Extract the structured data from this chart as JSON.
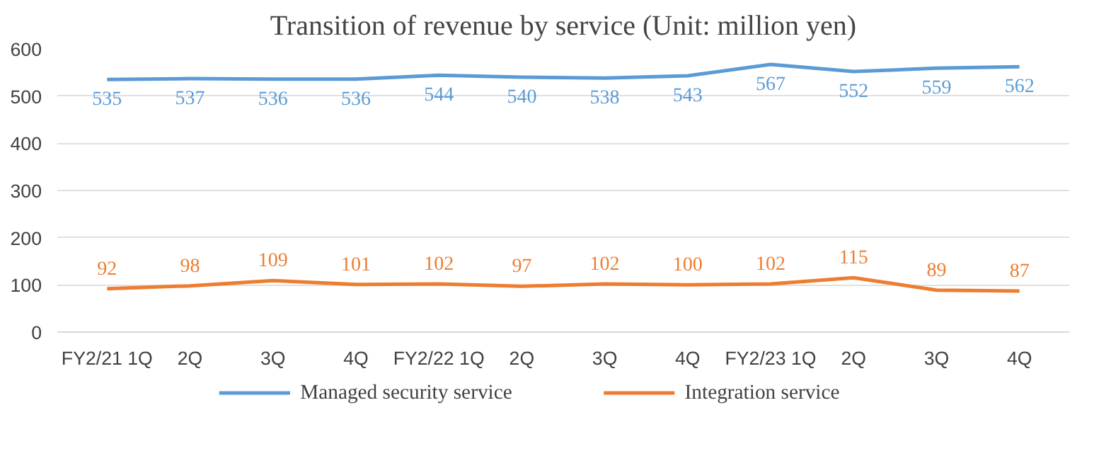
{
  "chart_data": {
    "type": "line",
    "title": "Transition of revenue by service (Unit: million yen)",
    "categories": [
      "FY2/21 1Q",
      "2Q",
      "3Q",
      "4Q",
      "FY2/22 1Q",
      "2Q",
      "3Q",
      "4Q",
      "FY2/23 1Q",
      "2Q",
      "3Q",
      "4Q"
    ],
    "series": [
      {
        "name": "Managed security service",
        "color": "#5b9bd5",
        "values": [
          535,
          537,
          536,
          536,
          544,
          540,
          538,
          543,
          567,
          552,
          559,
          562
        ]
      },
      {
        "name": "Integration service",
        "color": "#ed7d31",
        "values": [
          92,
          98,
          109,
          101,
          102,
          97,
          102,
          100,
          102,
          115,
          89,
          87
        ]
      }
    ],
    "ylim": [
      0,
      600
    ],
    "yticks": [
      0,
      100,
      200,
      300,
      400,
      500,
      600
    ],
    "grid": "y",
    "legend": "bottom",
    "data_labels": true,
    "marker": "none",
    "line_style": "solid"
  }
}
